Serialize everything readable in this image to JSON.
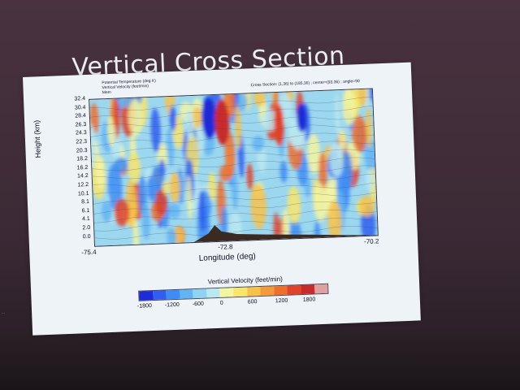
{
  "slide": {
    "title": "Vertical Cross Section",
    "meta_line1": "Potential Temperature  (deg K)",
    "meta_line2": "Vertical Velocity  (feet/min)",
    "meta_line3": "Mem",
    "cross_section_info": "Cross Section: (1,36) to (185,36) ; center=(93,36) ; angle=90"
  },
  "plot": {
    "y_axis_label": "Height (km)",
    "y_ticks": [
      "32.4",
      "30.4",
      "28.4",
      "26.3",
      "24.3",
      "22.3",
      "20.3",
      "18.2",
      "16.2",
      "14.2",
      "12.2",
      "10.1",
      "8.1",
      "6.1",
      "4.1",
      "2.0",
      "0.0"
    ],
    "x_axis_label": "Longitude (deg)",
    "x_ticks": [
      "-75.4",
      "-72.8",
      "-70.2"
    ]
  },
  "colorbar": {
    "title": "Vertical Velocity  (feet/min)",
    "ticks": [
      "-1800",
      "-1200",
      "-600",
      "0",
      "600",
      "1200",
      "1800"
    ],
    "colors": [
      "#1e2bd8",
      "#2f5ef0",
      "#3e8df5",
      "#63b4f4",
      "#8fd3f2",
      "#b8e8f0",
      "#f4f5a0",
      "#f8e56b",
      "#f7c24a",
      "#f39a3a",
      "#ee6e2e",
      "#e0432a",
      "#c92a2a",
      "#e0a0a0"
    ]
  },
  "edge": {
    "left_caption": "..."
  }
}
